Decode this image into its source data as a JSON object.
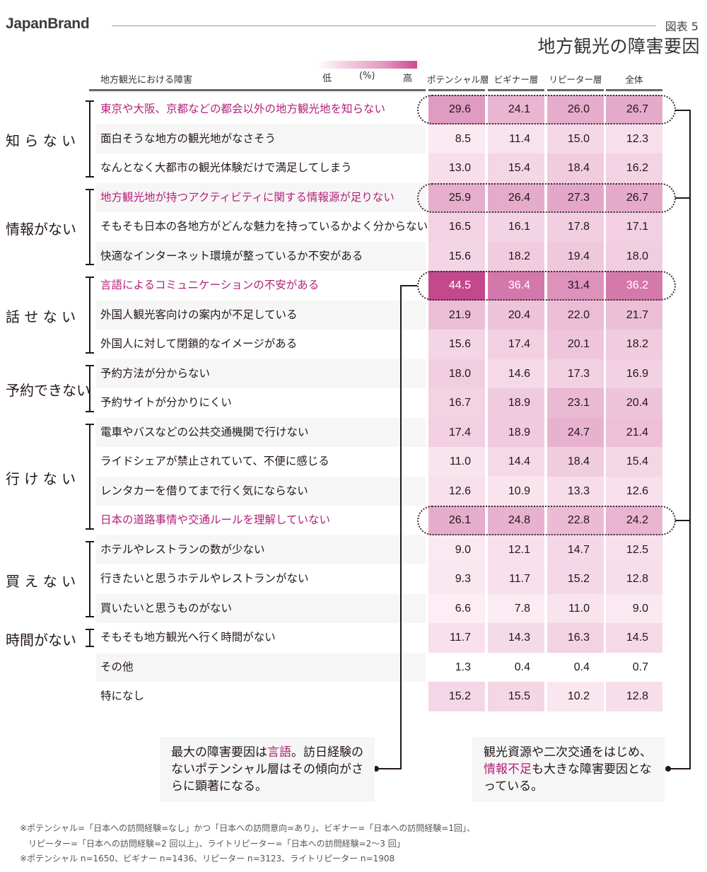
{
  "header": {
    "brand": "JapanBrand",
    "figure_number": "図表 5",
    "title": "地方観光の障害要因"
  },
  "legend": {
    "low": "低",
    "unit": "(%)",
    "high": "高",
    "gradient_colors": [
      "#ffffff",
      "#cc4a90"
    ]
  },
  "table_header": {
    "label_column": "地方観光における障害",
    "columns": [
      "ポテンシャル層",
      "ビギナー層",
      "リピーター層",
      "全体"
    ]
  },
  "categories": [
    {
      "label": "知 ら な い",
      "rows": [
        0,
        2
      ]
    },
    {
      "label": "情報がない",
      "rows": [
        3,
        5
      ]
    },
    {
      "label": "話 せ な い",
      "rows": [
        6,
        8
      ]
    },
    {
      "label": "予約できない",
      "rows": [
        9,
        10
      ]
    },
    {
      "label": "行 け な い",
      "rows": [
        11,
        14
      ]
    },
    {
      "label": "買 え な い",
      "rows": [
        15,
        17
      ]
    },
    {
      "label": "時間がない",
      "rows": [
        18,
        18
      ]
    }
  ],
  "rows": [
    {
      "label": "東京や大阪、京都などの都会以外の地方観光地を知らない",
      "highlight": true,
      "values": [
        "29.6",
        "24.1",
        "26.0",
        "26.7"
      ]
    },
    {
      "label": "面白そうな地方の観光地がなさそう",
      "highlight": false,
      "values": [
        "8.5",
        "11.4",
        "15.0",
        "12.3"
      ]
    },
    {
      "label": "なんとなく大都市の観光体験だけで満足してしまう",
      "highlight": false,
      "values": [
        "13.0",
        "15.4",
        "18.4",
        "16.2"
      ]
    },
    {
      "label": "地方観光地が持つアクティビティに関する情報源が足りない",
      "highlight": true,
      "values": [
        "25.9",
        "26.4",
        "27.3",
        "26.7"
      ]
    },
    {
      "label": "そもそも日本の各地方がどんな魅力を持っているかよく分からない",
      "highlight": false,
      "values": [
        "16.5",
        "16.1",
        "17.8",
        "17.1"
      ]
    },
    {
      "label": "快適なインターネット環境が整っているか不安がある",
      "highlight": false,
      "values": [
        "15.6",
        "18.2",
        "19.4",
        "18.0"
      ]
    },
    {
      "label": "言語によるコミュニケーションの不安がある",
      "highlight": true,
      "values": [
        "44.5",
        "36.4",
        "31.4",
        "36.2"
      ]
    },
    {
      "label": "外国人観光客向けの案内が不足している",
      "highlight": false,
      "values": [
        "21.9",
        "20.4",
        "22.0",
        "21.7"
      ]
    },
    {
      "label": "外国人に対して閉鎖的なイメージがある",
      "highlight": false,
      "values": [
        "15.6",
        "17.4",
        "20.1",
        "18.2"
      ]
    },
    {
      "label": "予約方法が分からない",
      "highlight": false,
      "values": [
        "18.0",
        "14.6",
        "17.3",
        "16.9"
      ]
    },
    {
      "label": "予約サイトが分かりにくい",
      "highlight": false,
      "values": [
        "16.7",
        "18.9",
        "23.1",
        "20.4"
      ]
    },
    {
      "label": "電車やバスなどの公共交通機関で行けない",
      "highlight": false,
      "values": [
        "17.4",
        "18.9",
        "24.7",
        "21.4"
      ]
    },
    {
      "label": "ライドシェアが禁止されていて、不便に感じる",
      "highlight": false,
      "values": [
        "11.0",
        "14.4",
        "18.4",
        "15.4"
      ]
    },
    {
      "label": "レンタカーを借りてまで行く気にならない",
      "highlight": false,
      "values": [
        "12.6",
        "10.9",
        "13.3",
        "12.6"
      ]
    },
    {
      "label": "日本の道路事情や交通ルールを理解していない",
      "highlight": true,
      "values": [
        "26.1",
        "24.8",
        "22.8",
        "24.2"
      ]
    },
    {
      "label": "ホテルやレストランの数が少ない",
      "highlight": false,
      "values": [
        "9.0",
        "12.1",
        "14.7",
        "12.5"
      ]
    },
    {
      "label": "行きたいと思うホテルやレストランがない",
      "highlight": false,
      "values": [
        "9.3",
        "11.7",
        "15.2",
        "12.8"
      ]
    },
    {
      "label": "買いたいと思うものがない",
      "highlight": false,
      "values": [
        "6.6",
        "7.8",
        "11.0",
        "9.0"
      ]
    },
    {
      "label": "そもそも地方観光へ行く時間がない",
      "highlight": false,
      "values": [
        "11.7",
        "14.3",
        "16.3",
        "14.5"
      ]
    },
    {
      "label": "その他",
      "highlight": false,
      "values": [
        "1.3",
        "0.4",
        "0.4",
        "0.7"
      ]
    },
    {
      "label": "特になし",
      "highlight": false,
      "values": [
        "15.2",
        "15.5",
        "10.2",
        "12.8"
      ]
    }
  ],
  "notes": {
    "left": {
      "parts": [
        {
          "text": "最大の障害要因は",
          "hl": false
        },
        {
          "text": "言語",
          "hl": true
        },
        {
          "text": "。訪日経験のないポテンシャル層はその傾向がさらに顕著になる。",
          "hl": false
        }
      ]
    },
    "right": {
      "parts": [
        {
          "text": "観光資源や二次交通をはじめ、",
          "hl": false
        },
        {
          "text": "情報不足",
          "hl": true
        },
        {
          "text": "も大きな障害要因となっている。",
          "hl": false
        }
      ]
    }
  },
  "footnotes": [
    "※ポテンシャル=「日本への訪問経験=なし」かつ「日本への訪問意向=あり」、ビギナー=「日本への訪問経験=1回」、",
    "　リピーター=「日本への訪問経験=2 回以上」、ライトリピーター=「日本への訪問経験=2～3 回」",
    "※ポテンシャル n=1650、ビギナー n=1436、リピーター n=3123、ライトリピーター n=1908"
  ],
  "colors": {
    "highlight_text": "#b3207a",
    "heat_max": "#c4488d",
    "heat_min": "#fff3f7"
  },
  "chart_data": {
    "type": "heatmap",
    "title": "地方観光の障害要因",
    "subtitle": "図表 5",
    "unit": "%",
    "columns": [
      "ポテンシャル層",
      "ビギナー層",
      "リピーター層",
      "全体"
    ],
    "row_groups": [
      "知らない",
      "知らない",
      "知らない",
      "情報がない",
      "情報がない",
      "情報がない",
      "話せない",
      "話せない",
      "話せない",
      "予約できない",
      "予約できない",
      "行けない",
      "行けない",
      "行けない",
      "行けない",
      "買えない",
      "買えない",
      "買えない",
      "時間がない",
      "",
      ""
    ],
    "categories": [
      "東京や大阪、京都などの都会以外の地方観光地を知らない",
      "面白そうな地方の観光地がなさそう",
      "なんとなく大都市の観光体験だけで満足してしまう",
      "地方観光地が持つアクティビティに関する情報源が足りない",
      "そもそも日本の各地方がどんな魅力を持っているかよく分からない",
      "快適なインターネット環境が整っているか不安がある",
      "言語によるコミュニケーションの不安がある",
      "外国人観光客向けの案内が不足している",
      "外国人に対して閉鎖的なイメージがある",
      "予約方法が分からない",
      "予約サイトが分かりにくい",
      "電車やバスなどの公共交通機関で行けない",
      "ライドシェアが禁止されていて、不便に感じる",
      "レンタカーを借りてまで行く気にならない",
      "日本の道路事情や交通ルールを理解していない",
      "ホテルやレストランの数が少ない",
      "行きたいと思うホテルやレストランがない",
      "買いたいと思うものがない",
      "そもそも地方観光へ行く時間がない",
      "その他",
      "特になし"
    ],
    "series": [
      {
        "name": "ポテンシャル層",
        "values": [
          29.6,
          8.5,
          13.0,
          25.9,
          16.5,
          15.6,
          44.5,
          21.9,
          15.6,
          18.0,
          16.7,
          17.4,
          11.0,
          12.6,
          26.1,
          9.0,
          9.3,
          6.6,
          11.7,
          1.3,
          15.2
        ]
      },
      {
        "name": "ビギナー層",
        "values": [
          24.1,
          11.4,
          15.4,
          26.4,
          16.1,
          18.2,
          36.4,
          20.4,
          17.4,
          14.6,
          18.9,
          18.9,
          14.4,
          10.9,
          24.8,
          12.1,
          11.7,
          7.8,
          14.3,
          0.4,
          15.5
        ]
      },
      {
        "name": "リピーター層",
        "values": [
          26.0,
          15.0,
          18.4,
          27.3,
          17.8,
          19.4,
          31.4,
          22.0,
          20.1,
          17.3,
          23.1,
          24.7,
          18.4,
          13.3,
          22.8,
          14.7,
          15.2,
          11.0,
          16.3,
          0.4,
          10.2
        ]
      },
      {
        "name": "全体",
        "values": [
          26.7,
          12.3,
          16.2,
          26.7,
          17.1,
          18.0,
          36.2,
          21.7,
          18.2,
          16.9,
          20.4,
          21.4,
          15.4,
          12.6,
          24.2,
          12.5,
          12.8,
          9.0,
          14.5,
          0.7,
          12.8
        ]
      }
    ],
    "highlighted_rows": [
      0,
      3,
      6,
      14
    ],
    "legend": {
      "low": "低",
      "high": "高",
      "unit": "(%)"
    }
  }
}
